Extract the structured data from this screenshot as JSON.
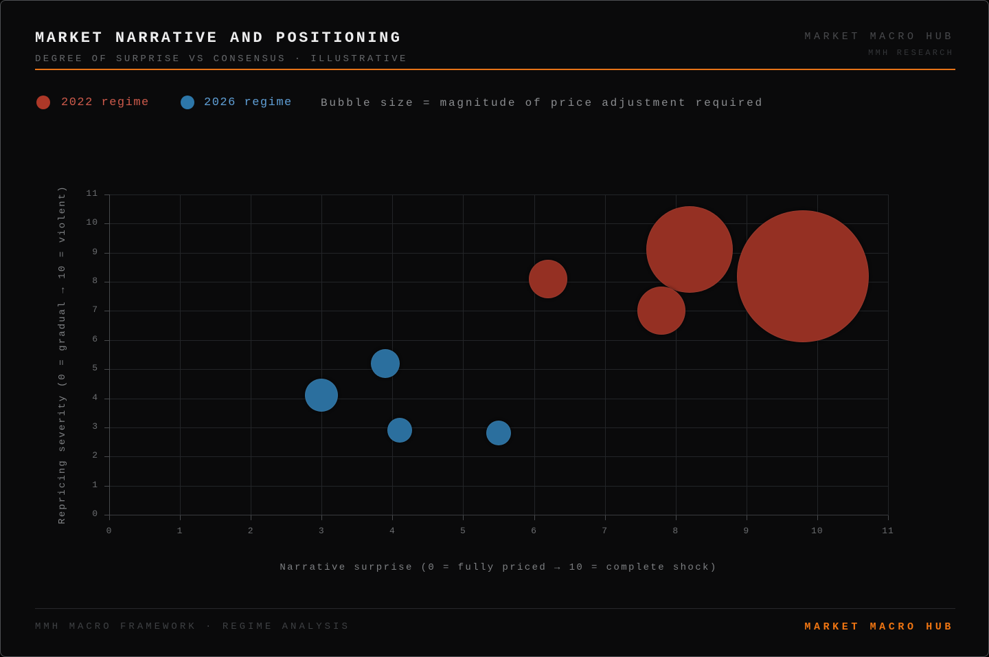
{
  "header": {
    "title": "MARKET NARRATIVE AND POSITIONING",
    "subtitle": "DEGREE OF SURPRISE VS CONSENSUS · ILLUSTRATIVE",
    "brand_top": "MARKET MACRO HUB",
    "brand_sub": "MMH RESEARCH"
  },
  "legend": {
    "items": [
      {
        "label": "2022 regime",
        "dot_color": "#ad3828",
        "text_color": "#cd5a4b"
      },
      {
        "label": "2026 regime",
        "dot_color": "#2d77a9",
        "text_color": "#5f9fd6"
      }
    ],
    "note": "Bubble size = magnitude of price adjustment required"
  },
  "chart_data": {
    "type": "scatter",
    "subtype": "bubble",
    "title": "Market narrative and positioning — degree of surprise vs consensus",
    "xlabel": "Narrative surprise (0 = fully priced → 10 = complete shock)",
    "ylabel": "Repricing severity (0 = gradual → 10 = violent)",
    "xlim": [
      0,
      11
    ],
    "ylim": [
      0,
      11
    ],
    "xticks": [
      0,
      1,
      2,
      3,
      4,
      5,
      6,
      7,
      8,
      9,
      10,
      11
    ],
    "yticks": [
      0,
      1,
      2,
      3,
      4,
      5,
      6,
      7,
      8,
      9,
      10,
      11
    ],
    "grid": true,
    "bubble_size_meaning": "magnitude of price adjustment required",
    "series": [
      {
        "name": "2022 regime",
        "color": "#953023",
        "points": [
          {
            "x": 6.2,
            "y": 8.1,
            "r": 28
          },
          {
            "x": 8.2,
            "y": 9.1,
            "r": 63
          },
          {
            "x": 7.8,
            "y": 7.0,
            "r": 35
          },
          {
            "x": 9.8,
            "y": 8.2,
            "r": 96
          }
        ]
      },
      {
        "name": "2026 regime",
        "color": "#2b6f9e",
        "points": [
          {
            "x": 3.0,
            "y": 4.1,
            "r": 24
          },
          {
            "x": 3.9,
            "y": 5.2,
            "r": 21
          },
          {
            "x": 4.1,
            "y": 2.9,
            "r": 18
          },
          {
            "x": 5.5,
            "y": 2.8,
            "r": 18
          }
        ]
      }
    ]
  },
  "footer": {
    "left": "MMH MACRO FRAMEWORK · REGIME ANALYSIS",
    "brand": "MARKET MACRO HUB"
  },
  "colors": {
    "background": "#0a0a0b",
    "accent_orange": "#e77317",
    "red_bubble": "#953023",
    "blue_bubble": "#2b6f9e",
    "gridline": "#232528",
    "tick_label": "#6b6d70"
  }
}
